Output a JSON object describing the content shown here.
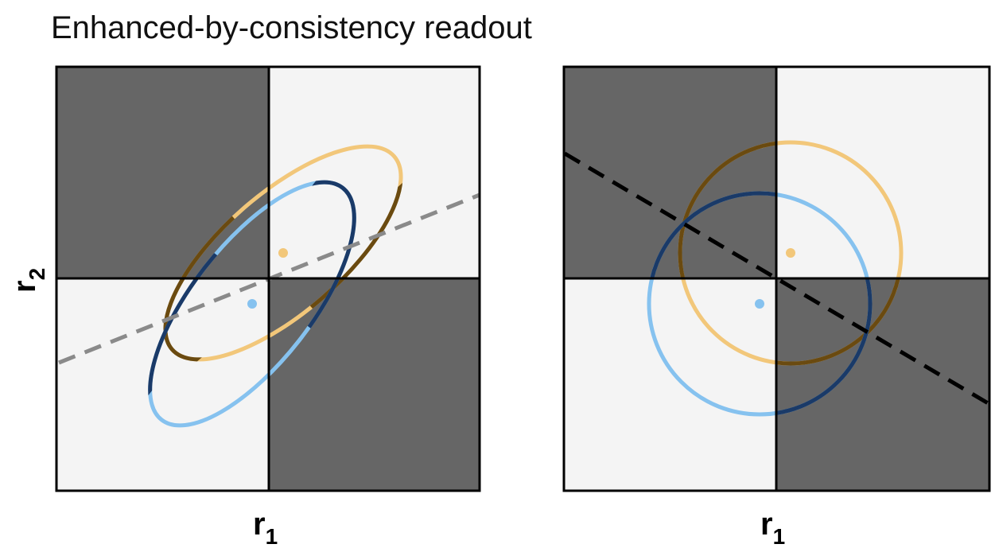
{
  "figure": {
    "title": "Enhanced-by-consistency readout",
    "panels": [
      {
        "xlabel_main": "r",
        "xlabel_sub": "1",
        "ylabel_main": "r",
        "ylabel_sub": "2",
        "divider_style": "dashed",
        "divider_color": "#8a8a8a",
        "distributions": [
          {
            "color": "#f2c77a",
            "shape": "correlated ellipse"
          },
          {
            "color": "#86c2ef",
            "shape": "correlated ellipse"
          }
        ]
      },
      {
        "xlabel_main": "r",
        "xlabel_sub": "1",
        "divider_style": "dashed",
        "divider_color": "#000000",
        "distributions": [
          {
            "color": "#f2c77a",
            "shape": "circle"
          },
          {
            "color": "#86c2ef",
            "shape": "circle"
          }
        ]
      }
    ],
    "colors": {
      "dark_quadrant": "#666666",
      "light_quadrant": "#f4f4f4",
      "yellow_on_light": "#f2c77a",
      "yellow_on_dark": "#6a4a10",
      "blue_on_light": "#86c2ef",
      "blue_on_dark": "#1a3a68"
    }
  }
}
